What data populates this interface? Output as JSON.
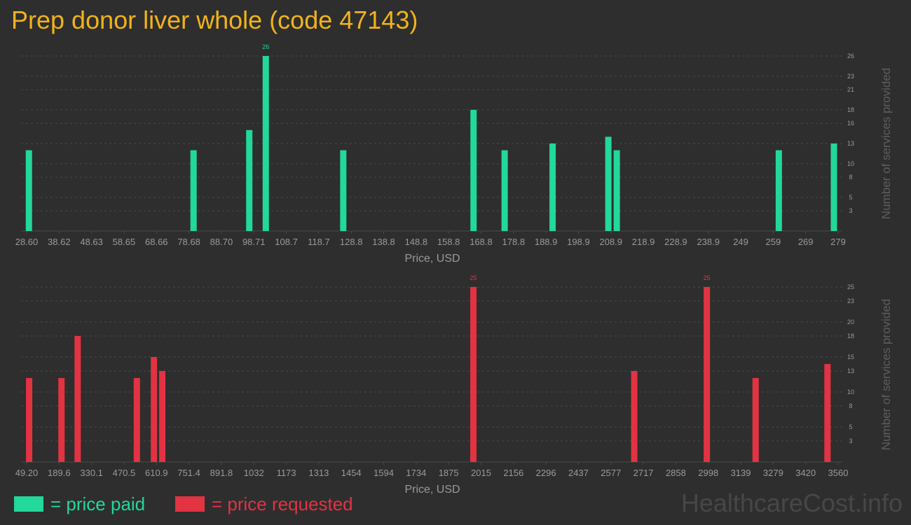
{
  "title": "Prep donor liver whole (code 47143)",
  "legend": {
    "paid": "= price paid",
    "requested": "= price requested"
  },
  "watermark": "HealthcareCost.info",
  "colors": {
    "background": "#2e2e2e",
    "title": "#f0b31c",
    "paid": "#22d89a",
    "requested": "#e23342",
    "axis_text": "#9a9a9a",
    "grid": "#4a4a4a"
  },
  "chart_data": [
    {
      "type": "bar",
      "series_name": "price paid",
      "color": "#22d89a",
      "xlabel": "Price, USD",
      "ylabel": "Number of services provided",
      "xlim": [
        28.6,
        279
      ],
      "ylim": [
        0,
        26
      ],
      "x_ticks": [
        "28.60",
        "38.62",
        "48.63",
        "58.65",
        "68.66",
        "78.68",
        "88.70",
        "98.71",
        "108.7",
        "118.7",
        "128.8",
        "138.8",
        "148.8",
        "158.8",
        "168.8",
        "178.8",
        "188.9",
        "198.9",
        "208.9",
        "218.9",
        "228.9",
        "238.9",
        "249",
        "259",
        "269",
        "279"
      ],
      "y_ticks": [
        "3",
        "5",
        "8",
        "10",
        "13",
        "16",
        "18",
        "21",
        "23",
        "26"
      ],
      "grid": true,
      "points": [
        {
          "x": 29.3,
          "y": 12
        },
        {
          "x": 80.1,
          "y": 12
        },
        {
          "x": 97.3,
          "y": 15
        },
        {
          "x": 102.4,
          "y": 26,
          "label": "26"
        },
        {
          "x": 126.3,
          "y": 12
        },
        {
          "x": 166.5,
          "y": 18
        },
        {
          "x": 176.1,
          "y": 12
        },
        {
          "x": 190.9,
          "y": 13
        },
        {
          "x": 208.1,
          "y": 14
        },
        {
          "x": 210.7,
          "y": 12
        },
        {
          "x": 260.7,
          "y": 12
        },
        {
          "x": 277.7,
          "y": 13
        }
      ]
    },
    {
      "type": "bar",
      "series_name": "price requested",
      "color": "#e23342",
      "xlabel": "Price, USD",
      "ylabel": "Number of services provided",
      "xlim": [
        49.2,
        3560
      ],
      "ylim": [
        0,
        25
      ],
      "x_ticks": [
        "49.20",
        "189.6",
        "330.1",
        "470.5",
        "610.9",
        "751.4",
        "891.8",
        "1032",
        "1173",
        "1313",
        "1454",
        "1594",
        "1734",
        "1875",
        "2015",
        "2156",
        "2296",
        "2437",
        "2577",
        "2717",
        "2858",
        "2998",
        "3139",
        "3279",
        "3420",
        "3560"
      ],
      "y_ticks": [
        "3",
        "5",
        "8",
        "10",
        "13",
        "15",
        "18",
        "20",
        "23",
        "25"
      ],
      "grid": true,
      "points": [
        {
          "x": 60,
          "y": 12
        },
        {
          "x": 200,
          "y": 12
        },
        {
          "x": 270,
          "y": 18
        },
        {
          "x": 526,
          "y": 12
        },
        {
          "x": 600,
          "y": 15
        },
        {
          "x": 636,
          "y": 13
        },
        {
          "x": 1982,
          "y": 25,
          "label": "25"
        },
        {
          "x": 2678,
          "y": 13
        },
        {
          "x": 2992,
          "y": 25,
          "label": "25"
        },
        {
          "x": 3203,
          "y": 12
        },
        {
          "x": 3514,
          "y": 14
        }
      ]
    }
  ]
}
